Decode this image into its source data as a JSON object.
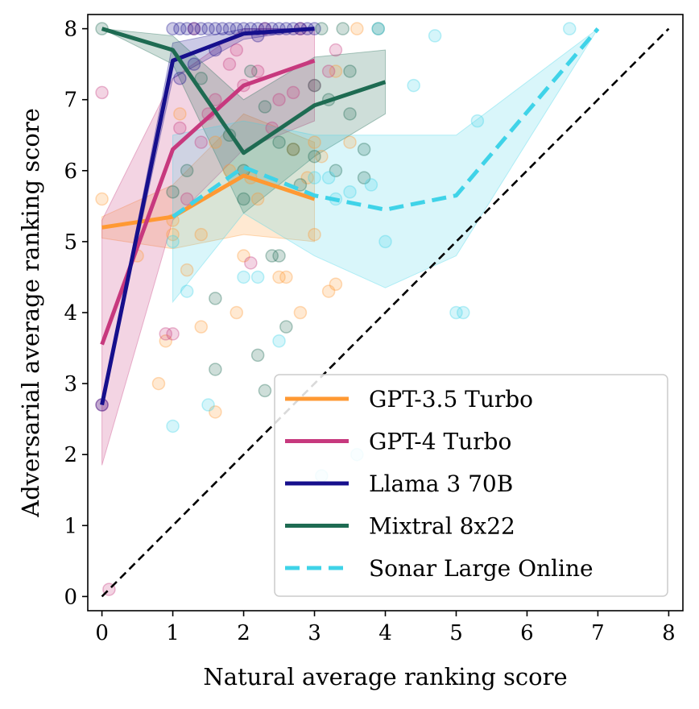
{
  "chart_data": {
    "type": "line",
    "xlabel": "Natural average ranking score",
    "ylabel": "Adversarial average ranking score",
    "xlim": [
      -0.2,
      8.2
    ],
    "ylim": [
      -0.2,
      8.2
    ],
    "xticks": [
      "0",
      "1",
      "2",
      "3",
      "4",
      "5",
      "6",
      "7",
      "8"
    ],
    "yticks": [
      "0",
      "1",
      "2",
      "3",
      "4",
      "5",
      "6",
      "7",
      "8"
    ],
    "grid": false,
    "legend_position": "bottom-right",
    "reference_line": {
      "style": "dashed",
      "color": "#000000",
      "x": [
        0,
        8
      ],
      "y": [
        0,
        8
      ]
    },
    "series": [
      {
        "name": "GPT-3.5 Turbo",
        "color": "#ff9933",
        "dash": false,
        "x": [
          0,
          1,
          2,
          3
        ],
        "y": [
          5.2,
          5.35,
          5.93,
          5.6
        ],
        "band_low": [
          5.05,
          4.9,
          5.1,
          5.0
        ],
        "band_high": [
          5.35,
          5.8,
          6.8,
          6.4
        ],
        "points": [
          [
            0,
            5.6
          ],
          [
            0.5,
            4.8
          ],
          [
            0.8,
            3.0
          ],
          [
            0.9,
            3.6
          ],
          [
            1,
            5.3
          ],
          [
            1,
            5.1
          ],
          [
            1.1,
            6.8
          ],
          [
            1.2,
            4.6
          ],
          [
            1.4,
            5.1
          ],
          [
            1.4,
            3.8
          ],
          [
            1.6,
            2.6
          ],
          [
            1.6,
            6.4
          ],
          [
            1.8,
            6.0
          ],
          [
            1.9,
            4.0
          ],
          [
            2,
            4.8
          ],
          [
            2.1,
            5.9
          ],
          [
            2.2,
            5.6
          ],
          [
            2.5,
            4.5
          ],
          [
            2.6,
            4.5
          ],
          [
            2.7,
            6.3
          ],
          [
            2.8,
            4.0
          ],
          [
            2.9,
            5.9
          ],
          [
            3,
            5.1
          ],
          [
            3,
            6.4
          ],
          [
            3.1,
            6.2
          ],
          [
            3.2,
            4.3
          ],
          [
            3.3,
            4.4
          ],
          [
            3.3,
            7.4
          ],
          [
            3.5,
            6.4
          ],
          [
            3.6,
            8.0
          ]
        ]
      },
      {
        "name": "GPT-4 Turbo",
        "color": "#c7397e",
        "dash": false,
        "x": [
          0,
          1,
          2,
          3
        ],
        "y": [
          3.55,
          6.3,
          7.2,
          7.55
        ],
        "band_low": [
          1.85,
          5.3,
          6.3,
          6.7
        ],
        "band_high": [
          5.3,
          7.3,
          8.0,
          8.0
        ],
        "points": [
          [
            0,
            7.1
          ],
          [
            0.1,
            0.1
          ],
          [
            0,
            2.7
          ],
          [
            0.9,
            3.7
          ],
          [
            1,
            3.7
          ],
          [
            1.1,
            6.6
          ],
          [
            1.2,
            5.6
          ],
          [
            1.4,
            6.4
          ],
          [
            1.5,
            6.8
          ],
          [
            1.6,
            7.0
          ],
          [
            1.8,
            7.5
          ],
          [
            1.9,
            7.7
          ],
          [
            2,
            7.2
          ],
          [
            2.1,
            4.7
          ],
          [
            2.2,
            7.4
          ],
          [
            2.4,
            6.6
          ],
          [
            2.5,
            7.0
          ],
          [
            2.7,
            7.1
          ],
          [
            3,
            7.2
          ],
          [
            3.2,
            7.4
          ],
          [
            3.3,
            7.7
          ],
          [
            2.8,
            8.0
          ],
          [
            2.3,
            8.0
          ],
          [
            1.3,
            8.0
          ]
        ]
      },
      {
        "name": "Llama 3 70B",
        "color": "#160f8c",
        "dash": false,
        "x": [
          0,
          1,
          2,
          3
        ],
        "y": [
          2.7,
          7.55,
          7.93,
          8.0
        ],
        "band_low": [
          2.7,
          7.3,
          7.85,
          8.0
        ],
        "band_high": [
          2.7,
          7.8,
          8.0,
          8.0
        ],
        "points": [
          [
            0,
            2.7
          ],
          [
            1,
            8.0
          ],
          [
            1.1,
            8.0
          ],
          [
            1.2,
            8.0
          ],
          [
            1.3,
            8.0
          ],
          [
            1.4,
            8.0
          ],
          [
            1.5,
            8.0
          ],
          [
            1.6,
            8.0
          ],
          [
            1.7,
            8.0
          ],
          [
            1.8,
            8.0
          ],
          [
            1.9,
            8.0
          ],
          [
            2.0,
            8.0
          ],
          [
            2.1,
            8.0
          ],
          [
            2.2,
            8.0
          ],
          [
            2.3,
            8.0
          ],
          [
            2.4,
            8.0
          ],
          [
            2.5,
            8.0
          ],
          [
            2.6,
            8.0
          ],
          [
            2.7,
            8.0
          ],
          [
            2.8,
            8.0
          ],
          [
            2.9,
            8.0
          ],
          [
            3.0,
            8.0
          ],
          [
            1.1,
            7.3
          ],
          [
            1.3,
            7.5
          ],
          [
            1.6,
            7.7
          ],
          [
            2.2,
            7.9
          ]
        ]
      },
      {
        "name": "Mixtral 8x22",
        "color": "#1e6b52",
        "dash": false,
        "x": [
          0,
          1,
          2,
          3,
          4
        ],
        "y": [
          8.0,
          7.7,
          6.25,
          6.92,
          7.25
        ],
        "band_low": [
          8.0,
          7.5,
          5.4,
          6.2,
          6.8
        ],
        "band_high": [
          8.0,
          7.9,
          7.0,
          7.6,
          7.7
        ],
        "points": [
          [
            0,
            8.0
          ],
          [
            1,
            5.7
          ],
          [
            1.2,
            6.0
          ],
          [
            1.4,
            7.3
          ],
          [
            1.6,
            4.2
          ],
          [
            1.6,
            3.2
          ],
          [
            1.8,
            6.5
          ],
          [
            2,
            5.6
          ],
          [
            2,
            6.0
          ],
          [
            2.1,
            7.4
          ],
          [
            2.2,
            3.4
          ],
          [
            2.3,
            2.9
          ],
          [
            2.3,
            6.9
          ],
          [
            2.4,
            4.8
          ],
          [
            2.5,
            6.4
          ],
          [
            2.5,
            4.8
          ],
          [
            2.6,
            3.8
          ],
          [
            2.7,
            6.3
          ],
          [
            2.8,
            5.8
          ],
          [
            3,
            6.2
          ],
          [
            3,
            7.2
          ],
          [
            3.2,
            7.0
          ],
          [
            3.3,
            6.0
          ],
          [
            3.5,
            6.8
          ],
          [
            3.5,
            7.4
          ],
          [
            3.7,
            6.3
          ],
          [
            3.7,
            5.9
          ],
          [
            3.4,
            8.0
          ],
          [
            3.9,
            8.0
          ],
          [
            3.1,
            8.0
          ]
        ]
      },
      {
        "name": "Sonar Large Online",
        "color": "#3fd3e8",
        "dash": true,
        "x": [
          1,
          2,
          3,
          4,
          5,
          7
        ],
        "y": [
          5.35,
          6.05,
          5.65,
          5.45,
          5.65,
          8.0
        ],
        "band_low": [
          4.15,
          5.4,
          4.8,
          4.35,
          4.8,
          8.0
        ],
        "band_high": [
          6.5,
          6.7,
          6.5,
          6.5,
          6.5,
          8.0
        ],
        "points": [
          [
            1,
            2.4
          ],
          [
            1,
            5.0
          ],
          [
            1.2,
            4.3
          ],
          [
            1.5,
            2.7
          ],
          [
            2,
            4.5
          ],
          [
            2.2,
            4.5
          ],
          [
            2.5,
            3.6
          ],
          [
            3,
            5.9
          ],
          [
            3.2,
            5.9
          ],
          [
            3.3,
            5.6
          ],
          [
            3.5,
            5.7
          ],
          [
            3.6,
            2.0
          ],
          [
            3.8,
            5.8
          ],
          [
            3.9,
            8.0
          ],
          [
            4,
            5.0
          ],
          [
            4.4,
            7.2
          ],
          [
            4.7,
            7.9
          ],
          [
            5,
            4.0
          ],
          [
            5.1,
            4.0
          ],
          [
            5.3,
            6.7
          ],
          [
            6.6,
            8.0
          ],
          [
            3.1,
            1.7
          ]
        ]
      }
    ]
  }
}
